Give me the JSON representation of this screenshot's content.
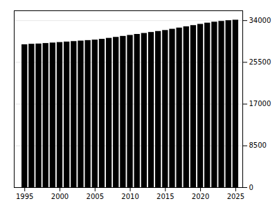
{
  "chart_data": {
    "type": "bar",
    "x": [
      1995,
      1996,
      1997,
      1998,
      1999,
      2000,
      2001,
      2002,
      2003,
      2004,
      2005,
      2006,
      2007,
      2008,
      2009,
      2010,
      2011,
      2012,
      2013,
      2014,
      2015,
      2016,
      2017,
      2018,
      2019,
      2020,
      2021,
      2022,
      2023,
      2024,
      2025
    ],
    "values": [
      29100,
      29200,
      29250,
      29350,
      29450,
      29550,
      29650,
      29750,
      29850,
      29950,
      30050,
      30200,
      30400,
      30600,
      30800,
      31000,
      31200,
      31400,
      31600,
      31800,
      32000,
      32250,
      32500,
      32750,
      33000,
      33250,
      33500,
      33700,
      33850,
      34000,
      34100
    ],
    "xlim": [
      1993.5,
      2026.0
    ],
    "xticks": [
      1995,
      2000,
      2005,
      2010,
      2015,
      2020,
      2025
    ],
    "ylim": [
      0,
      36000
    ],
    "yticks": [
      0,
      8500,
      17000,
      25500,
      34000
    ],
    "grid": true
  }
}
